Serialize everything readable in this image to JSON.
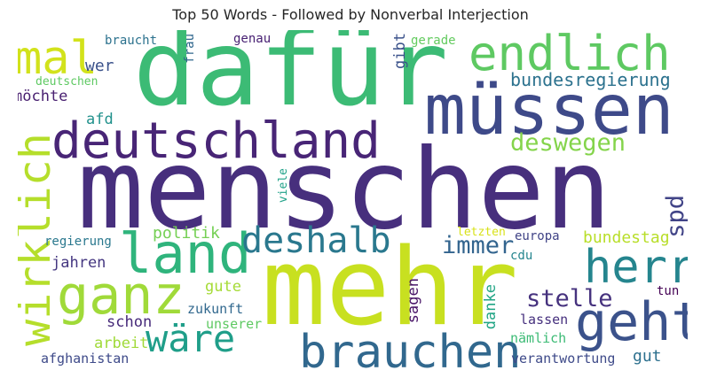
{
  "title": "Top 50 Words - Followed by Nonverbal Interjection",
  "words": {
    "menschen": {
      "text": "menschen",
      "color": "#472f7d"
    },
    "dafuer": {
      "text": "dafür",
      "color": "#3cbb75"
    },
    "mehr": {
      "text": "mehr",
      "color": "#c8e020"
    },
    "muessen": {
      "text": "müssen",
      "color": "#3e4a89"
    },
    "deutschland": {
      "text": "deutschland",
      "color": "#482576"
    },
    "endlich": {
      "text": "endlich",
      "color": "#5ec962"
    },
    "land": {
      "text": "land",
      "color": "#2fb47c"
    },
    "ganz": {
      "text": "ganz",
      "color": "#a0da39"
    },
    "brauchen": {
      "text": "brauchen",
      "color": "#31688e"
    },
    "geht": {
      "text": "geht",
      "color": "#3b528b"
    },
    "wirklich": {
      "text": "wirklich",
      "color": "#b5de2b"
    },
    "herr": {
      "text": "herr",
      "color": "#25858e"
    },
    "deshalb": {
      "text": "deshalb",
      "color": "#2a788e"
    },
    "waere": {
      "text": "wäre",
      "color": "#1f9e89"
    },
    "mal": {
      "text": "mal",
      "color": "#d2e21b"
    },
    "deswegen": {
      "text": "deswegen",
      "color": "#84d44b"
    },
    "bundesregierung": {
      "text": "bundesregierung",
      "color": "#2c728e"
    },
    "immer": {
      "text": "immer",
      "color": "#32648e"
    },
    "stelle": {
      "text": "stelle",
      "color": "#46327e"
    },
    "spd": {
      "text": "spd",
      "color": "#414487"
    },
    "bundestag": {
      "text": "bundestag",
      "color": "#b8de29"
    },
    "politik": {
      "text": "politik",
      "color": "#75d054"
    },
    "moechte": {
      "text": "möchte",
      "color": "#481f70"
    },
    "wer": {
      "text": "wer",
      "color": "#3b528b"
    },
    "afd": {
      "text": "afd",
      "color": "#21918c"
    },
    "jahren": {
      "text": "jahren",
      "color": "#453781"
    },
    "gute": {
      "text": "gute",
      "color": "#a5db36"
    },
    "schon": {
      "text": "schon",
      "color": "#472a7a"
    },
    "arbeit": {
      "text": "arbeit",
      "color": "#a0da39"
    },
    "zukunft": {
      "text": "zukunft",
      "color": "#31688e"
    },
    "unserer": {
      "text": "unserer",
      "color": "#5ec962"
    },
    "afghanistan": {
      "text": "afghanistan",
      "color": "#3e4a89"
    },
    "regierung": {
      "text": "regierung",
      "color": "#2a788e"
    },
    "sagen": {
      "text": "sagen",
      "color": "#481467"
    },
    "danke": {
      "text": "danke",
      "color": "#21a585"
    },
    "gut": {
      "text": "gut",
      "color": "#2d708e"
    },
    "lassen": {
      "text": "lassen",
      "color": "#46307e"
    },
    "naemlich": {
      "text": "nämlich",
      "color": "#3cbb75"
    },
    "verantwortung": {
      "text": "verantwortung",
      "color": "#3e4a89"
    },
    "tun": {
      "text": "tun",
      "color": "#440154"
    },
    "cdu": {
      "text": "cdu",
      "color": "#25858e"
    },
    "europa": {
      "text": "europa",
      "color": "#414487"
    },
    "letzten": {
      "text": "letzten",
      "color": "#d8e219"
    },
    "viele": {
      "text": "viele",
      "color": "#1fa188"
    },
    "gibt": {
      "text": "gibt",
      "color": "#3b528b"
    },
    "gerade": {
      "text": "gerade",
      "color": "#63cb5f"
    },
    "genau": {
      "text": "genau",
      "color": "#482173"
    },
    "frau": {
      "text": "frau",
      "color": "#31688e"
    },
    "braucht": {
      "text": "braucht",
      "color": "#2c728e"
    },
    "deutschen": {
      "text": "deutschen",
      "color": "#5ec962"
    }
  }
}
